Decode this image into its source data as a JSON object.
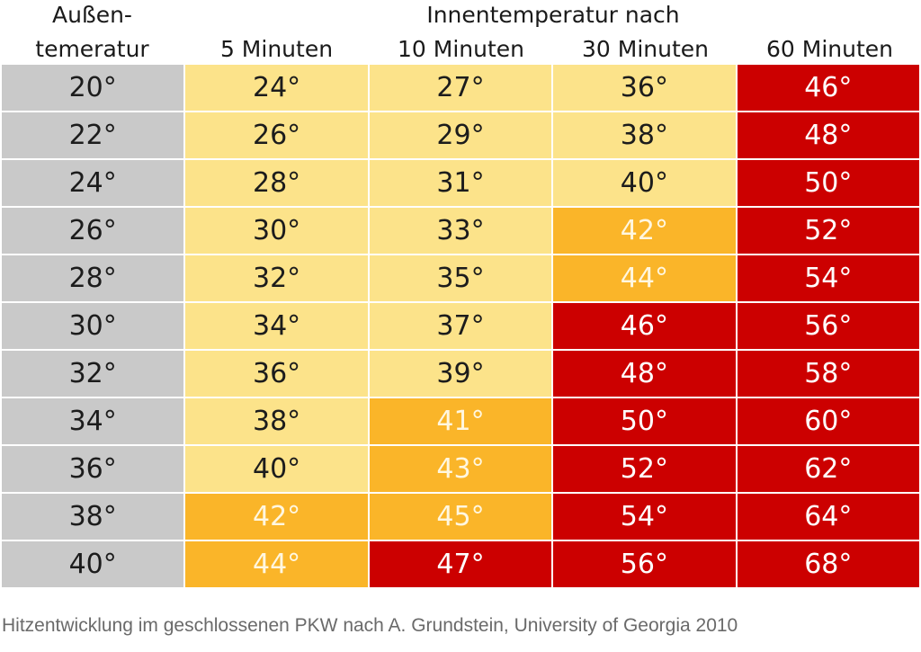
{
  "chart_data": {
    "type": "table",
    "row_header_label": [
      "Außen-",
      "temeratur"
    ],
    "group_header": "Innentemperatur nach",
    "columns": [
      "5 Minuten",
      "10 Minuten",
      "30 Minuten",
      "60 Minuten"
    ],
    "rows": [
      {
        "outdoor": "20°",
        "values": [
          "24°",
          "27°",
          "36°",
          "46°"
        ],
        "levels": [
          "yellow",
          "yellow",
          "yellow",
          "red"
        ]
      },
      {
        "outdoor": "22°",
        "values": [
          "26°",
          "29°",
          "38°",
          "48°"
        ],
        "levels": [
          "yellow",
          "yellow",
          "yellow",
          "red"
        ]
      },
      {
        "outdoor": "24°",
        "values": [
          "28°",
          "31°",
          "40°",
          "50°"
        ],
        "levels": [
          "yellow",
          "yellow",
          "yellow",
          "red"
        ]
      },
      {
        "outdoor": "26°",
        "values": [
          "30°",
          "33°",
          "42°",
          "52°"
        ],
        "levels": [
          "yellow",
          "yellow",
          "orange",
          "red"
        ]
      },
      {
        "outdoor": "28°",
        "values": [
          "32°",
          "35°",
          "44°",
          "54°"
        ],
        "levels": [
          "yellow",
          "yellow",
          "orange",
          "red"
        ]
      },
      {
        "outdoor": "30°",
        "values": [
          "34°",
          "37°",
          "46°",
          "56°"
        ],
        "levels": [
          "yellow",
          "yellow",
          "red",
          "red"
        ]
      },
      {
        "outdoor": "32°",
        "values": [
          "36°",
          "39°",
          "48°",
          "58°"
        ],
        "levels": [
          "yellow",
          "yellow",
          "red",
          "red"
        ]
      },
      {
        "outdoor": "34°",
        "values": [
          "38°",
          "41°",
          "50°",
          "60°"
        ],
        "levels": [
          "yellow",
          "orange",
          "red",
          "red"
        ]
      },
      {
        "outdoor": "36°",
        "values": [
          "40°",
          "43°",
          "52°",
          "62°"
        ],
        "levels": [
          "yellow",
          "orange",
          "red",
          "red"
        ]
      },
      {
        "outdoor": "38°",
        "values": [
          "42°",
          "45°",
          "54°",
          "64°"
        ],
        "levels": [
          "orange",
          "orange",
          "red",
          "red"
        ]
      },
      {
        "outdoor": "40°",
        "values": [
          "44°",
          "47°",
          "56°",
          "68°"
        ],
        "levels": [
          "orange",
          "red",
          "red",
          "red"
        ]
      }
    ],
    "colors": {
      "gray": "#c9c9c9",
      "yellow": "#fce38a",
      "orange": "#fab529",
      "red": "#cc0000"
    }
  },
  "caption": "Hitzentwicklung im geschlossenen PKW nach A. Grundstein, University of Georgia 2010"
}
